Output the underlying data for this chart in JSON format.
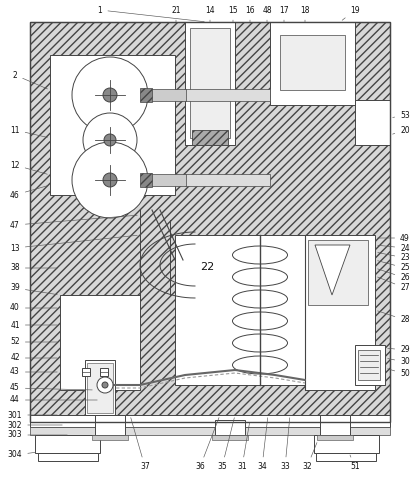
{
  "figsize": [
    4.14,
    4.78
  ],
  "dpi": 100,
  "lc": "#444444",
  "fc_hatch": "#d8d8d8",
  "fc_white": "#ffffff",
  "fc_gray": "#aaaaaa",
  "hatch_pattern": "////",
  "bg": "#ffffff"
}
